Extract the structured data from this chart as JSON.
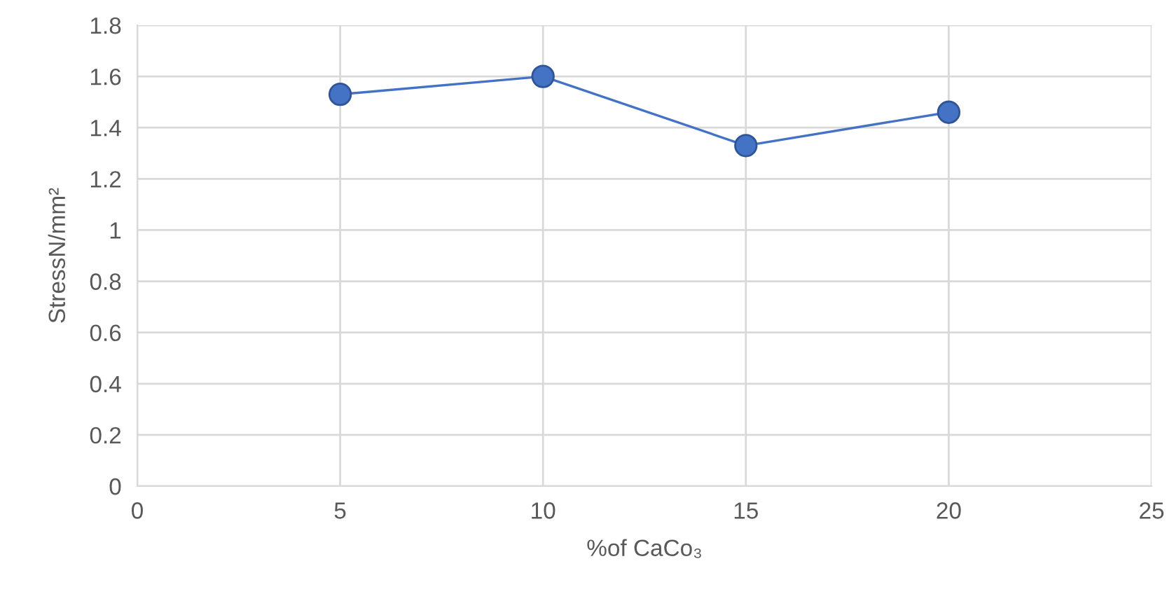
{
  "chart_data": {
    "type": "line",
    "xlabel": "%of CaCo₃",
    "ylabel": "StressN/mm²",
    "x": [
      5,
      10,
      15,
      20
    ],
    "series": [
      {
        "color": "#4472c4",
        "values": [
          1.53,
          1.6,
          1.33,
          1.46
        ]
      }
    ],
    "xlim": [
      0,
      25
    ],
    "xticks": [
      0,
      5,
      10,
      15,
      20,
      25
    ],
    "ylim": [
      0,
      1.8
    ],
    "yticks": [
      0,
      {
        "value": 0.2,
        "label": "0.2"
      },
      {
        "value": 0.4,
        "label": "0.4"
      },
      {
        "value": 0.6,
        "label": "0.6"
      },
      {
        "value": 0.8,
        "label": "0.8"
      },
      1,
      {
        "value": 1.2,
        "label": "1.2"
      },
      {
        "value": 1.4,
        "label": "1.4"
      },
      {
        "value": 1.6,
        "label": "1.6"
      },
      {
        "value": 1.8,
        "label": "1.8"
      }
    ],
    "grid": true,
    "marker": "circle",
    "line_style": "solid"
  }
}
